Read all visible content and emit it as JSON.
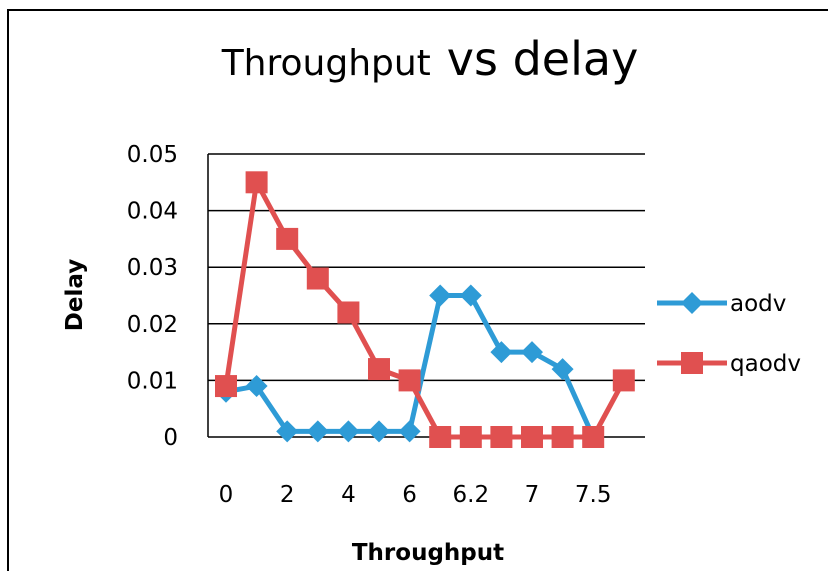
{
  "chart_data": {
    "type": "line",
    "title_part1": "Throughput",
    "title_part2": "vs delay",
    "xlabel": "Throughput",
    "ylabel": "Delay",
    "ylim": [
      0,
      0.05
    ],
    "y_ticks": [
      "0",
      "0.01",
      "0.02",
      "0.03",
      "0.04",
      "0.05"
    ],
    "y_tick_values": [
      0,
      0.01,
      0.02,
      0.03,
      0.04,
      0.05
    ],
    "categories": [
      "0",
      "",
      "2",
      "",
      "4",
      "",
      "6",
      "",
      "6.2",
      "",
      "7",
      "",
      "7.5",
      ""
    ],
    "grid": true,
    "legend": "right",
    "series": [
      {
        "name": "aodv",
        "color": "#2E9BD6",
        "marker": "diamond",
        "values": [
          0.008,
          0.009,
          0.001,
          0.001,
          0.001,
          0.001,
          0.001,
          0.025,
          0.025,
          0.015,
          0.015,
          0.012,
          0,
          null
        ]
      },
      {
        "name": "qaodv",
        "color": "#E05050",
        "marker": "square",
        "values": [
          0.009,
          0.045,
          0.035,
          0.028,
          0.022,
          0.012,
          0.01,
          0,
          0,
          0,
          0,
          0,
          0,
          0.01
        ]
      }
    ]
  }
}
